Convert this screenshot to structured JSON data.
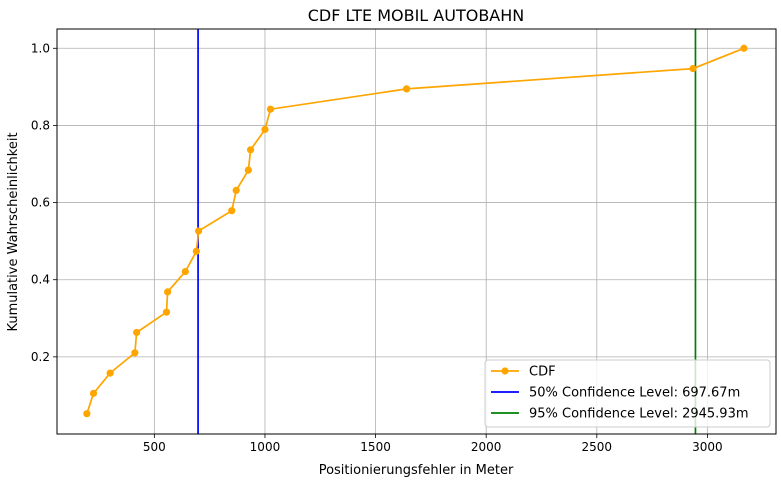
{
  "chart_data": {
    "type": "line",
    "title": "CDF LTE MOBIL AUTOBAHN",
    "xlabel": "Positionierungsfehler in Meter",
    "ylabel": "Kumulative Wahrscheinlichkeit",
    "xlim": [
      60,
      3310
    ],
    "ylim": [
      0.0,
      1.05
    ],
    "xticks": [
      500,
      1000,
      1500,
      2000,
      2500,
      3000
    ],
    "yticks": [
      0.2,
      0.4,
      0.6,
      0.8,
      1.0
    ],
    "xtick_labels": [
      "500",
      "1000",
      "1500",
      "2000",
      "2500",
      "3000"
    ],
    "ytick_labels": [
      "0.2",
      "0.4",
      "0.6",
      "0.8",
      "1.0"
    ],
    "grid": true,
    "legend_position": "bottom-right",
    "series": [
      {
        "name": "CDF",
        "color": "#ffa500",
        "marker": "circle",
        "x": [
          195,
          225,
          300,
          412,
          420,
          555,
          560,
          640,
          690,
          700,
          850,
          870,
          925,
          935,
          1000,
          1025,
          1640,
          2935,
          3165
        ],
        "y": [
          0.0526,
          0.1053,
          0.1579,
          0.2105,
          0.2632,
          0.3158,
          0.3684,
          0.4211,
          0.4737,
          0.5263,
          0.5789,
          0.6316,
          0.6842,
          0.7368,
          0.7895,
          0.8421,
          0.8947,
          0.9474,
          1.0
        ]
      }
    ],
    "vlines": [
      {
        "name": "50% Confidence Level: 697.67m",
        "x": 697.67,
        "color": "#0000ff"
      },
      {
        "name": "95% Confidence Level: 2945.93m",
        "x": 2945.93,
        "color": "#008000"
      }
    ]
  }
}
